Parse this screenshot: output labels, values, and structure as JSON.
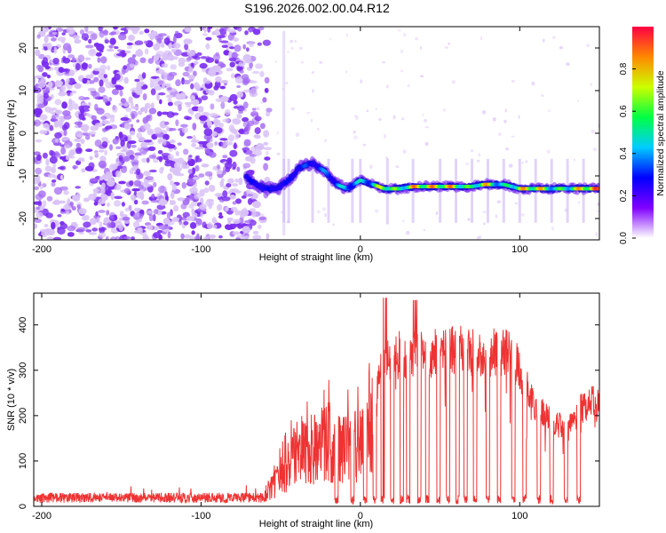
{
  "title": "S196.2026.002.00.04.R12",
  "colors": {
    "snr_line": "#ee3333",
    "axis": "#000000",
    "noise_purple": "#7a2cf0",
    "noise_light": "#d9c2f7"
  },
  "chart_data": [
    {
      "type": "heatmap",
      "name": "spectrogram",
      "xlabel": "Height of straight line (km)",
      "ylabel": "Frequency (Hz)",
      "xlim": [
        -205,
        150
      ],
      "ylim": [
        -25,
        25
      ],
      "xticks": [
        -200,
        -100,
        0,
        100
      ],
      "xtick_labels": [
        "-200",
        "-100",
        "0",
        "100"
      ],
      "yticks": [
        20,
        10,
        0,
        -10,
        -20
      ],
      "ytick_labels": [
        "20",
        "10",
        "0",
        "-10",
        "-20"
      ],
      "colorbar": {
        "label": "Normalized spectral amplitude",
        "range": [
          0,
          1
        ],
        "ticks": [
          0.0,
          0.2,
          0.4,
          0.6,
          0.8
        ],
        "tick_labels": [
          "0.0",
          "0.2",
          "0.4",
          "0.6",
          "0.8"
        ],
        "colormap": [
          "#ffffff",
          "#8000ff",
          "#0000ff",
          "#00ccff",
          "#00ff44",
          "#ccff00",
          "#ff8800",
          "#ff0044"
        ]
      },
      "noise_region_km": [
        -205,
        -65
      ],
      "ridge": [
        {
          "km": -72,
          "hz": -10,
          "amp": 0.25
        },
        {
          "km": -66,
          "hz": -12,
          "amp": 0.3
        },
        {
          "km": -60,
          "hz": -13,
          "amp": 0.3
        },
        {
          "km": -52,
          "hz": -13,
          "amp": 0.25
        },
        {
          "km": -45,
          "hz": -11,
          "amp": 0.3
        },
        {
          "km": -38,
          "hz": -8,
          "amp": 0.35
        },
        {
          "km": -30,
          "hz": -7,
          "amp": 0.35
        },
        {
          "km": -22,
          "hz": -9,
          "amp": 0.4
        },
        {
          "km": -15,
          "hz": -12,
          "amp": 0.45
        },
        {
          "km": -8,
          "hz": -13,
          "amp": 0.5
        },
        {
          "km": 0,
          "hz": -11,
          "amp": 0.5
        },
        {
          "km": 8,
          "hz": -12,
          "amp": 0.55
        },
        {
          "km": 15,
          "hz": -13,
          "amp": 0.9
        },
        {
          "km": 25,
          "hz": -13,
          "amp": 0.6
        },
        {
          "km": 33,
          "hz": -12.5,
          "amp": 0.9
        },
        {
          "km": 45,
          "hz": -12.5,
          "amp": 0.9
        },
        {
          "km": 58,
          "hz": -12.5,
          "amp": 0.9
        },
        {
          "km": 70,
          "hz": -12.5,
          "amp": 0.6
        },
        {
          "km": 78,
          "hz": -12,
          "amp": 0.9
        },
        {
          "km": 90,
          "hz": -12,
          "amp": 0.5
        },
        {
          "km": 100,
          "hz": -13,
          "amp": 0.85
        },
        {
          "km": 112,
          "hz": -13,
          "amp": 0.9
        },
        {
          "km": 122,
          "hz": -13,
          "amp": 0.6
        },
        {
          "km": 132,
          "hz": -13,
          "amp": 0.7
        },
        {
          "km": 143,
          "hz": -13,
          "amp": 1.0
        },
        {
          "km": 150,
          "hz": -13,
          "amp": 0.95
        }
      ]
    },
    {
      "type": "line",
      "name": "snr",
      "xlabel": "Height of straight line (km)",
      "ylabel": "SNR (10 * v/v)",
      "xlim": [
        -205,
        150
      ],
      "ylim": [
        0,
        470
      ],
      "xticks": [
        -200,
        -100,
        0,
        100
      ],
      "xtick_labels": [
        "-200",
        "-100",
        "0",
        "100"
      ],
      "yticks": [
        0,
        100,
        200,
        300,
        400
      ],
      "ytick_labels": [
        "0",
        "100",
        "200",
        "300",
        "400"
      ],
      "envelope": [
        {
          "km": -205,
          "snr": 20
        },
        {
          "km": -150,
          "snr": 20
        },
        {
          "km": -100,
          "snr": 22
        },
        {
          "km": -60,
          "snr": 30
        },
        {
          "km": -48,
          "snr": 110
        },
        {
          "km": -40,
          "snr": 170
        },
        {
          "km": -30,
          "snr": 190
        },
        {
          "km": -20,
          "snr": 210
        },
        {
          "km": -10,
          "snr": 180
        },
        {
          "km": 0,
          "snr": 200
        },
        {
          "km": 8,
          "snr": 260
        },
        {
          "km": 15,
          "snr": 350
        },
        {
          "km": 25,
          "snr": 360
        },
        {
          "km": 40,
          "snr": 360
        },
        {
          "km": 60,
          "snr": 370
        },
        {
          "km": 75,
          "snr": 365
        },
        {
          "km": 95,
          "snr": 365
        },
        {
          "km": 110,
          "snr": 230
        },
        {
          "km": 130,
          "snr": 180
        },
        {
          "km": 140,
          "snr": 240
        },
        {
          "km": 150,
          "snr": 250
        }
      ],
      "dropouts_km": [
        -15,
        -5,
        3,
        9,
        14,
        20,
        26,
        30,
        37,
        42,
        49,
        55,
        61,
        66,
        72,
        80,
        87,
        96,
        103,
        112,
        120,
        129,
        137
      ]
    }
  ]
}
